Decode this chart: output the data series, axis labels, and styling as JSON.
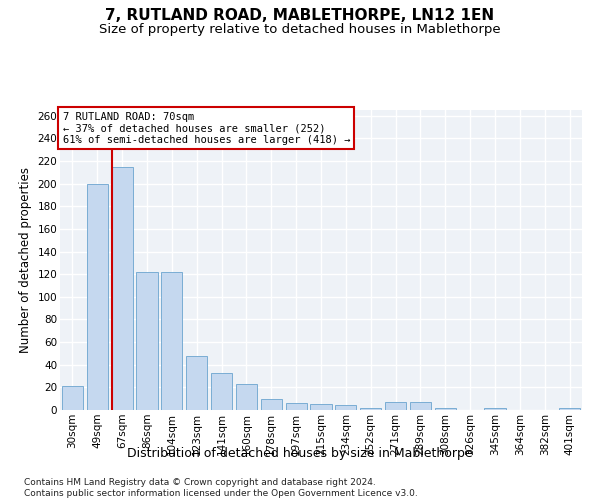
{
  "title": "7, RUTLAND ROAD, MABLETHORPE, LN12 1EN",
  "subtitle": "Size of property relative to detached houses in Mablethorpe",
  "xlabel": "Distribution of detached houses by size in Mablethorpe",
  "ylabel": "Number of detached properties",
  "categories": [
    "30sqm",
    "49sqm",
    "67sqm",
    "86sqm",
    "104sqm",
    "123sqm",
    "141sqm",
    "160sqm",
    "178sqm",
    "197sqm",
    "215sqm",
    "234sqm",
    "252sqm",
    "271sqm",
    "289sqm",
    "308sqm",
    "326sqm",
    "345sqm",
    "364sqm",
    "382sqm",
    "401sqm"
  ],
  "values": [
    21,
    200,
    215,
    122,
    122,
    48,
    33,
    23,
    10,
    6,
    5,
    4,
    2,
    7,
    7,
    2,
    0,
    2,
    0,
    0,
    2
  ],
  "bar_color": "#c5d8ef",
  "bar_edge_color": "#7aadd4",
  "highlight_bar_index": 2,
  "highlight_line_color": "#cc0000",
  "annotation_text": "7 RUTLAND ROAD: 70sqm\n← 37% of detached houses are smaller (252)\n61% of semi-detached houses are larger (418) →",
  "annotation_box_color": "#ffffff",
  "annotation_border_color": "#cc0000",
  "footer_text": "Contains HM Land Registry data © Crown copyright and database right 2024.\nContains public sector information licensed under the Open Government Licence v3.0.",
  "ylim": [
    0,
    265
  ],
  "yticks": [
    0,
    20,
    40,
    60,
    80,
    100,
    120,
    140,
    160,
    180,
    200,
    220,
    240,
    260
  ],
  "background_color": "#eef2f7",
  "grid_color": "#ffffff",
  "title_fontsize": 11,
  "subtitle_fontsize": 9.5,
  "tick_fontsize": 7.5,
  "ylabel_fontsize": 8.5,
  "xlabel_fontsize": 9,
  "footer_fontsize": 6.5
}
